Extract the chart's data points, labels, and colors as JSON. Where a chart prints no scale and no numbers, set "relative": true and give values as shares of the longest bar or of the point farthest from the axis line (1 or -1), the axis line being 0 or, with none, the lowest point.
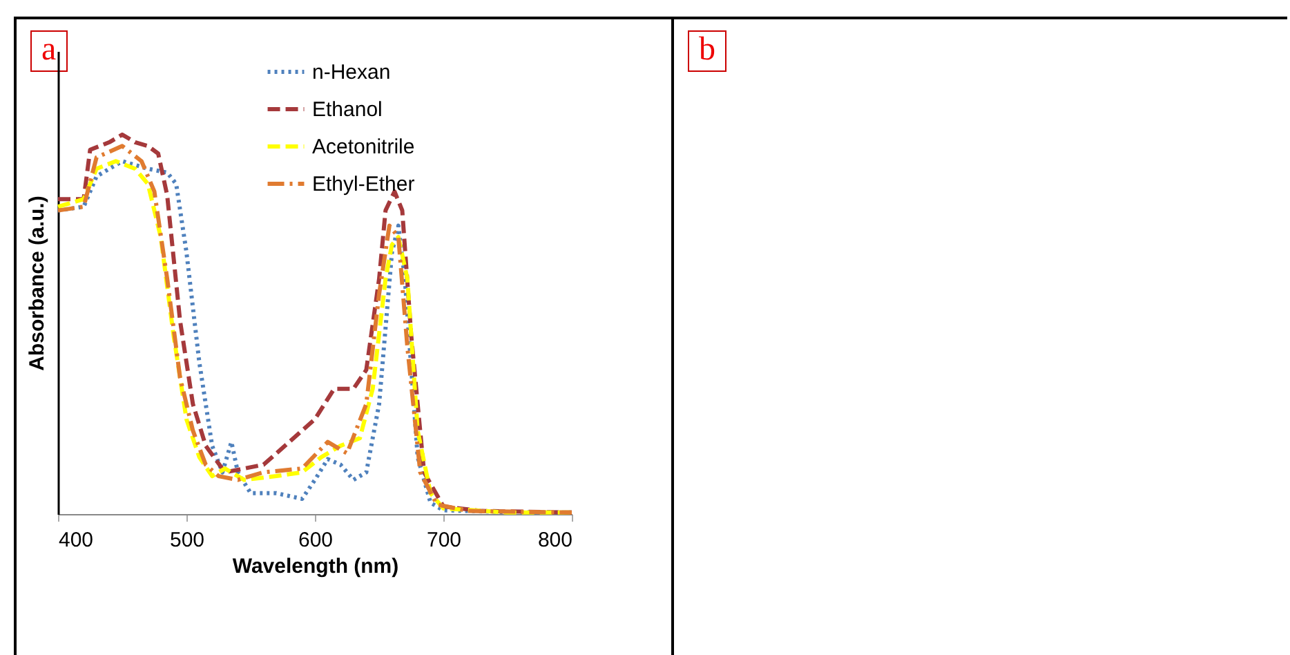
{
  "chart_data": [
    {
      "type": "line",
      "title": "a",
      "xlabel": "Wavelength (nm)",
      "ylabel": "Absorbance (a.u.)",
      "relative": true,
      "xlim": [
        400,
        800
      ],
      "xticks": [
        400,
        500,
        600,
        700,
        800
      ],
      "legend": "top right",
      "grid": false,
      "series": [
        {
          "name": "n-Hexan",
          "color": "#4f81bd",
          "line_style": "dotted",
          "x": [
            400,
            420,
            430,
            450,
            470,
            485,
            492,
            500,
            510,
            520,
            528,
            535,
            540,
            550,
            570,
            590,
            600,
            610,
            620,
            630,
            640,
            650,
            660,
            665,
            670,
            680,
            690,
            700,
            750,
            800
          ],
          "values": [
            0.8,
            0.81,
            0.89,
            0.93,
            0.91,
            0.9,
            0.87,
            0.69,
            0.4,
            0.18,
            0.11,
            0.19,
            0.11,
            0.055,
            0.055,
            0.04,
            0.09,
            0.145,
            0.13,
            0.09,
            0.11,
            0.29,
            0.69,
            0.76,
            0.62,
            0.15,
            0.03,
            0.01,
            0.005,
            0.004
          ]
        },
        {
          "name": "Ethanol",
          "color": "#a5393b",
          "line_style": "dashed",
          "x": [
            400,
            420,
            425,
            440,
            450,
            460,
            470,
            478,
            485,
            495,
            505,
            515,
            530,
            545,
            560,
            580,
            600,
            615,
            630,
            640,
            650,
            655,
            662,
            668,
            675,
            685,
            700,
            730,
            800
          ],
          "values": [
            0.83,
            0.83,
            0.96,
            0.98,
            1.0,
            0.98,
            0.97,
            0.95,
            0.84,
            0.51,
            0.29,
            0.18,
            0.11,
            0.12,
            0.13,
            0.19,
            0.25,
            0.33,
            0.33,
            0.38,
            0.62,
            0.8,
            0.85,
            0.8,
            0.47,
            0.11,
            0.02,
            0.008,
            0.004
          ]
        },
        {
          "name": "Acetonitrile",
          "color": "#ffff00",
          "line_style": "dashed",
          "x": [
            400,
            420,
            430,
            445,
            460,
            470,
            480,
            490,
            500,
            510,
            520,
            530,
            545,
            570,
            590,
            605,
            620,
            635,
            645,
            655,
            660,
            665,
            672,
            680,
            690,
            700,
            750,
            800
          ],
          "values": [
            0.81,
            0.83,
            0.91,
            0.93,
            0.91,
            0.87,
            0.73,
            0.47,
            0.25,
            0.15,
            0.1,
            0.12,
            0.09,
            0.1,
            0.11,
            0.15,
            0.18,
            0.2,
            0.33,
            0.62,
            0.71,
            0.73,
            0.62,
            0.22,
            0.055,
            0.015,
            0.004,
            0.004
          ]
        },
        {
          "name": "Ethyl-Ether",
          "color": "#e07b30",
          "line_style": "dashdot",
          "x": [
            400,
            420,
            430,
            450,
            465,
            475,
            485,
            495,
            505,
            515,
            525,
            540,
            560,
            590,
            610,
            625,
            640,
            650,
            658,
            665,
            672,
            682,
            695,
            720,
            800
          ],
          "values": [
            0.8,
            0.81,
            0.94,
            0.97,
            0.93,
            0.85,
            0.62,
            0.36,
            0.22,
            0.13,
            0.1,
            0.09,
            0.11,
            0.12,
            0.19,
            0.16,
            0.29,
            0.58,
            0.76,
            0.73,
            0.44,
            0.11,
            0.025,
            0.008,
            0.004
          ]
        }
      ]
    },
    {
      "type": "other",
      "title": "b"
    }
  ]
}
